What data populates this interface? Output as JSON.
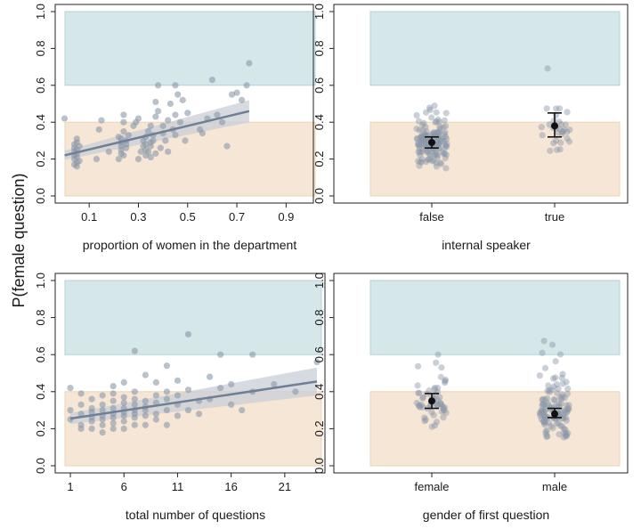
{
  "figure": {
    "ylabel": "P(female question)",
    "band_colors": {
      "high": "#d6e7ea",
      "high_edge": "#b3d3d7",
      "low": "#f6e6d5",
      "low_edge": "#ecd2b4"
    },
    "point_color": "#8a97a8",
    "line_color": "#6f7f95",
    "ci_color": "#c9ced6"
  },
  "chart_data": [
    {
      "type": "scatter",
      "xlabel": "proportion of women in the department",
      "ylabel": "P(female question)",
      "xlim": [
        -0.02,
        1.0
      ],
      "ylim": [
        0,
        1.0
      ],
      "xticks": [
        0.1,
        0.3,
        0.5,
        0.7,
        0.9
      ],
      "xtick_labels": [
        "0.1",
        "0.3",
        "0.5",
        "0.7",
        "0.9"
      ],
      "yticks": [
        0.0,
        0.2,
        0.4,
        0.6,
        0.8,
        1.0
      ],
      "ytick_labels": [
        "0.0",
        "0.2",
        "0.4",
        "0.6",
        "0.8",
        "1.0"
      ],
      "bands": [
        {
          "from": 0.0,
          "to": 0.4,
          "kind": "low"
        },
        {
          "from": 0.6,
          "to": 1.0,
          "kind": "high"
        }
      ],
      "fit": {
        "x": [
          0.0,
          0.75
        ],
        "y": [
          0.22,
          0.46
        ],
        "ci_lower": [
          0.195,
          0.4
        ],
        "ci_upper": [
          0.245,
          0.52
        ]
      },
      "points": [
        [
          0.0,
          0.42
        ],
        [
          0.04,
          0.17
        ],
        [
          0.04,
          0.2
        ],
        [
          0.04,
          0.22
        ],
        [
          0.04,
          0.24
        ],
        [
          0.04,
          0.26
        ],
        [
          0.04,
          0.28
        ],
        [
          0.05,
          0.18
        ],
        [
          0.05,
          0.21
        ],
        [
          0.05,
          0.23
        ],
        [
          0.05,
          0.25
        ],
        [
          0.05,
          0.29
        ],
        [
          0.05,
          0.31
        ],
        [
          0.05,
          0.16
        ],
        [
          0.06,
          0.19
        ],
        [
          0.06,
          0.27
        ],
        [
          0.13,
          0.2
        ],
        [
          0.14,
          0.36
        ],
        [
          0.15,
          0.41
        ],
        [
          0.18,
          0.24
        ],
        [
          0.22,
          0.2
        ],
        [
          0.22,
          0.32
        ],
        [
          0.23,
          0.23
        ],
        [
          0.23,
          0.25
        ],
        [
          0.23,
          0.27
        ],
        [
          0.23,
          0.29
        ],
        [
          0.23,
          0.31
        ],
        [
          0.24,
          0.35
        ],
        [
          0.24,
          0.4
        ],
        [
          0.24,
          0.44
        ],
        [
          0.24,
          0.22
        ],
        [
          0.25,
          0.26
        ],
        [
          0.25,
          0.3
        ],
        [
          0.25,
          0.28
        ],
        [
          0.26,
          0.33
        ],
        [
          0.28,
          0.38
        ],
        [
          0.29,
          0.4
        ],
        [
          0.3,
          0.42
        ],
        [
          0.3,
          0.2
        ],
        [
          0.31,
          0.24
        ],
        [
          0.32,
          0.27
        ],
        [
          0.32,
          0.3
        ],
        [
          0.33,
          0.22
        ],
        [
          0.33,
          0.25
        ],
        [
          0.33,
          0.28
        ],
        [
          0.33,
          0.32
        ],
        [
          0.34,
          0.35
        ],
        [
          0.34,
          0.24
        ],
        [
          0.35,
          0.38
        ],
        [
          0.35,
          0.21
        ],
        [
          0.35,
          0.27
        ],
        [
          0.35,
          0.29
        ],
        [
          0.36,
          0.33
        ],
        [
          0.36,
          0.3
        ],
        [
          0.37,
          0.23
        ],
        [
          0.37,
          0.43
        ],
        [
          0.37,
          0.51
        ],
        [
          0.38,
          0.46
        ],
        [
          0.38,
          0.6
        ],
        [
          0.39,
          0.26
        ],
        [
          0.4,
          0.34
        ],
        [
          0.4,
          0.38
        ],
        [
          0.41,
          0.3
        ],
        [
          0.42,
          0.41
        ],
        [
          0.42,
          0.24
        ],
        [
          0.43,
          0.5
        ],
        [
          0.44,
          0.36
        ],
        [
          0.45,
          0.44
        ],
        [
          0.45,
          0.6
        ],
        [
          0.45,
          0.33
        ],
        [
          0.46,
          0.55
        ],
        [
          0.47,
          0.4
        ],
        [
          0.48,
          0.52
        ],
        [
          0.49,
          0.3
        ],
        [
          0.5,
          0.45
        ],
        [
          0.55,
          0.36
        ],
        [
          0.56,
          0.34
        ],
        [
          0.58,
          0.42
        ],
        [
          0.6,
          0.63
        ],
        [
          0.62,
          0.44
        ],
        [
          0.64,
          0.4
        ],
        [
          0.66,
          0.27
        ],
        [
          0.68,
          0.55
        ],
        [
          0.7,
          0.56
        ],
        [
          0.72,
          0.52
        ],
        [
          0.74,
          0.6
        ],
        [
          0.75,
          0.72
        ]
      ]
    },
    {
      "type": "point_errorbar",
      "xlabel": "internal speaker",
      "categories": [
        "false",
        "true"
      ],
      "ylim": [
        0,
        1.0
      ],
      "yticks": [
        0.0,
        0.2,
        0.4,
        0.6,
        0.8,
        1.0
      ],
      "ytick_labels": [
        "0.0",
        "0.2",
        "0.4",
        "0.6",
        "0.8",
        "1.0"
      ],
      "bands": [
        {
          "from": 0.0,
          "to": 0.4,
          "kind": "low"
        },
        {
          "from": 0.6,
          "to": 1.0,
          "kind": "high"
        }
      ],
      "estimates": [
        {
          "category": "false",
          "mean": 0.29,
          "lower": 0.26,
          "upper": 0.32
        },
        {
          "category": "true",
          "mean": 0.38,
          "lower": 0.32,
          "upper": 0.45
        }
      ],
      "jitter": [
        {
          "category": "false",
          "n": 140,
          "min": 0.15,
          "max": 0.58
        },
        {
          "category": "true",
          "n": 32,
          "min": 0.21,
          "max": 0.72
        }
      ]
    },
    {
      "type": "scatter",
      "xlabel": "total number of questions",
      "xlim": [
        0,
        24.5
      ],
      "ylim": [
        0,
        1.0
      ],
      "xticks": [
        1,
        6,
        11,
        16,
        21
      ],
      "xtick_labels": [
        "1",
        "6",
        "11",
        "16",
        "21"
      ],
      "yticks": [
        0.0,
        0.2,
        0.4,
        0.6,
        0.8,
        1.0
      ],
      "ytick_labels": [
        "0.0",
        "0.2",
        "0.4",
        "0.6",
        "0.8",
        "1.0"
      ],
      "bands": [
        {
          "from": 0.0,
          "to": 0.4,
          "kind": "low"
        },
        {
          "from": 0.6,
          "to": 1.0,
          "kind": "high"
        }
      ],
      "fit": {
        "x": [
          1,
          24
        ],
        "y": [
          0.255,
          0.455
        ],
        "ci_lower": [
          0.225,
          0.38
        ],
        "ci_upper": [
          0.285,
          0.53
        ]
      },
      "points": [
        [
          1,
          0.42
        ],
        [
          1,
          0.3
        ],
        [
          1,
          0.25
        ],
        [
          2,
          0.33
        ],
        [
          2,
          0.28
        ],
        [
          2,
          0.22
        ],
        [
          2,
          0.39
        ],
        [
          2,
          0.2
        ],
        [
          3,
          0.31
        ],
        [
          3,
          0.26
        ],
        [
          3,
          0.24
        ],
        [
          3,
          0.36
        ],
        [
          3,
          0.2
        ],
        [
          3,
          0.29
        ],
        [
          4,
          0.33
        ],
        [
          4,
          0.27
        ],
        [
          4,
          0.22
        ],
        [
          4,
          0.18
        ],
        [
          4,
          0.38
        ],
        [
          4,
          0.3
        ],
        [
          4,
          0.25
        ],
        [
          5,
          0.35
        ],
        [
          5,
          0.28
        ],
        [
          5,
          0.23
        ],
        [
          5,
          0.2
        ],
        [
          5,
          0.31
        ],
        [
          5,
          0.26
        ],
        [
          5,
          0.39
        ],
        [
          5,
          0.43
        ],
        [
          6,
          0.34
        ],
        [
          6,
          0.29
        ],
        [
          6,
          0.24
        ],
        [
          6,
          0.2
        ],
        [
          6,
          0.37
        ],
        [
          6,
          0.31
        ],
        [
          6,
          0.27
        ],
        [
          6,
          0.45
        ],
        [
          7,
          0.33
        ],
        [
          7,
          0.28
        ],
        [
          7,
          0.22
        ],
        [
          7,
          0.62
        ],
        [
          7,
          0.36
        ],
        [
          7,
          0.26
        ],
        [
          7,
          0.4
        ],
        [
          7,
          0.3
        ],
        [
          8,
          0.32
        ],
        [
          8,
          0.27
        ],
        [
          8,
          0.22
        ],
        [
          8,
          0.35
        ],
        [
          8,
          0.49
        ],
        [
          8,
          0.3
        ],
        [
          9,
          0.34
        ],
        [
          9,
          0.28
        ],
        [
          9,
          0.45
        ],
        [
          9,
          0.25
        ],
        [
          9,
          0.38
        ],
        [
          10,
          0.36
        ],
        [
          10,
          0.3
        ],
        [
          10,
          0.22
        ],
        [
          10,
          0.54
        ],
        [
          10,
          0.4
        ],
        [
          11,
          0.33
        ],
        [
          11,
          0.27
        ],
        [
          11,
          0.46
        ],
        [
          11,
          0.38
        ],
        [
          12,
          0.71
        ],
        [
          12,
          0.3
        ],
        [
          12,
          0.41
        ],
        [
          13,
          0.35
        ],
        [
          13,
          0.28
        ],
        [
          14,
          0.48
        ],
        [
          14,
          0.36
        ],
        [
          15,
          0.6
        ],
        [
          15,
          0.42
        ],
        [
          16,
          0.33
        ],
        [
          16,
          0.44
        ],
        [
          17,
          0.3
        ],
        [
          18,
          0.6
        ],
        [
          18,
          0.4
        ],
        [
          20,
          0.44
        ],
        [
          22,
          0.4
        ],
        [
          24,
          0.56
        ]
      ]
    },
    {
      "type": "point_errorbar",
      "xlabel": "gender of first question",
      "categories": [
        "female",
        "male"
      ],
      "ylim": [
        0,
        1.0
      ],
      "yticks": [
        0.0,
        0.2,
        0.4,
        0.6,
        0.8,
        1.0
      ],
      "ytick_labels": [
        "0.0",
        "0.2",
        "0.4",
        "0.6",
        "0.8",
        "1.0"
      ],
      "bands": [
        {
          "from": 0.0,
          "to": 0.4,
          "kind": "low"
        },
        {
          "from": 0.6,
          "to": 1.0,
          "kind": "high"
        }
      ],
      "estimates": [
        {
          "category": "female",
          "mean": 0.35,
          "lower": 0.31,
          "upper": 0.39
        },
        {
          "category": "male",
          "mean": 0.28,
          "lower": 0.26,
          "upper": 0.31
        }
      ],
      "jitter": [
        {
          "category": "female",
          "n": 55,
          "min": 0.19,
          "max": 0.66
        },
        {
          "category": "male",
          "n": 120,
          "min": 0.14,
          "max": 0.68
        }
      ]
    }
  ]
}
